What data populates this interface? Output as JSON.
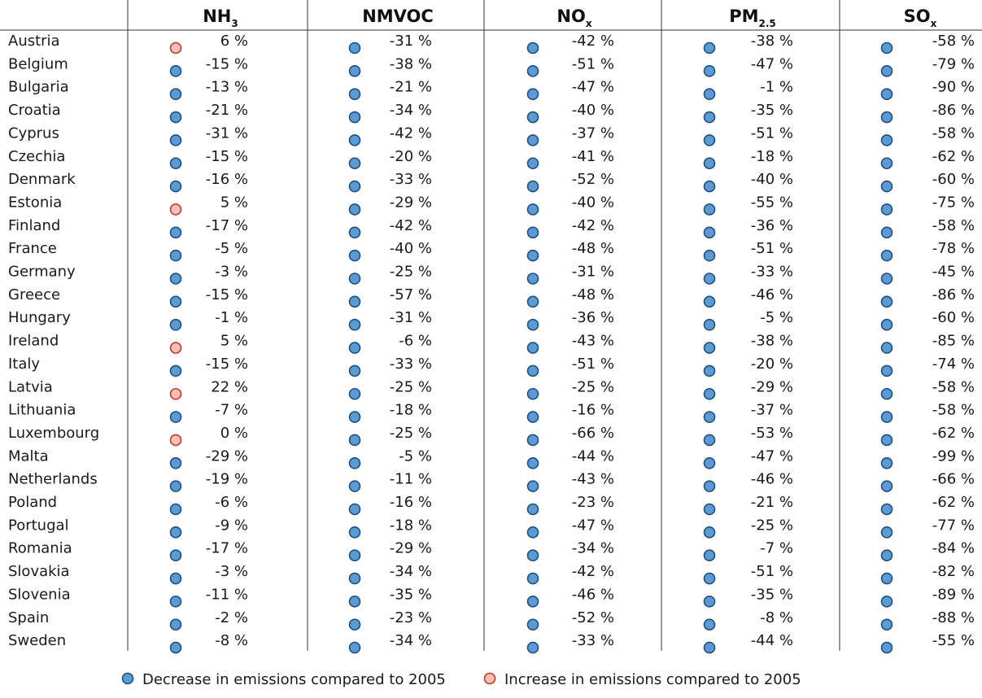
{
  "colors": {
    "decrease": "#5b9bd5",
    "increase": "#f8c0b0",
    "decrease_stroke": "#1f4e79",
    "increase_stroke": "#c0392b"
  },
  "legend": {
    "decrease": "Decrease in emissions compared to 2005",
    "increase": "Increase in emissions compared to 2005"
  },
  "chart_data": {
    "type": "table",
    "unit": "%",
    "columns": [
      {
        "main": "NH",
        "sub": "3"
      },
      {
        "main": "NMVOC",
        "sub": ""
      },
      {
        "main": "NO",
        "sub": "x"
      },
      {
        "main": "PM",
        "sub": "2.5"
      },
      {
        "main": "SO",
        "sub": "x"
      }
    ],
    "rows": [
      {
        "country": "Austria",
        "values": [
          6,
          -31,
          -42,
          -38,
          -58
        ]
      },
      {
        "country": "Belgium",
        "values": [
          -15,
          -38,
          -51,
          -47,
          -79
        ]
      },
      {
        "country": "Bulgaria",
        "values": [
          -13,
          -21,
          -47,
          -1,
          -90
        ]
      },
      {
        "country": "Croatia",
        "values": [
          -21,
          -34,
          -40,
          -35,
          -86
        ]
      },
      {
        "country": "Cyprus",
        "values": [
          -31,
          -42,
          -37,
          -51,
          -58
        ]
      },
      {
        "country": "Czechia",
        "values": [
          -15,
          -20,
          -41,
          -18,
          -62
        ]
      },
      {
        "country": "Denmark",
        "values": [
          -16,
          -33,
          -52,
          -40,
          -60
        ]
      },
      {
        "country": "Estonia",
        "values": [
          5,
          -29,
          -40,
          -55,
          -75
        ]
      },
      {
        "country": "Finland",
        "values": [
          -17,
          -42,
          -42,
          -36,
          -58
        ]
      },
      {
        "country": "France",
        "values": [
          -5,
          -40,
          -48,
          -51,
          -78
        ]
      },
      {
        "country": "Germany",
        "values": [
          -3,
          -25,
          -31,
          -33,
          -45
        ]
      },
      {
        "country": "Greece",
        "values": [
          -15,
          -57,
          -48,
          -46,
          -86
        ]
      },
      {
        "country": "Hungary",
        "values": [
          -1,
          -31,
          -36,
          -5,
          -60
        ]
      },
      {
        "country": "Ireland",
        "values": [
          5,
          -6,
          -43,
          -38,
          -85
        ]
      },
      {
        "country": "Italy",
        "values": [
          -15,
          -33,
          -51,
          -20,
          -74
        ]
      },
      {
        "country": "Latvia",
        "values": [
          22,
          -25,
          -25,
          -29,
          -58
        ]
      },
      {
        "country": "Lithuania",
        "values": [
          -7,
          -18,
          -16,
          -37,
          -58
        ]
      },
      {
        "country": "Luxembourg",
        "values": [
          0,
          -25,
          -66,
          -53,
          -62
        ]
      },
      {
        "country": "Malta",
        "values": [
          -29,
          -5,
          -44,
          -47,
          -99
        ]
      },
      {
        "country": "Netherlands",
        "values": [
          -19,
          -11,
          -43,
          -46,
          -66
        ]
      },
      {
        "country": "Poland",
        "values": [
          -6,
          -16,
          -23,
          -21,
          -62
        ]
      },
      {
        "country": "Portugal",
        "values": [
          -9,
          -18,
          -47,
          -25,
          -77
        ]
      },
      {
        "country": "Romania",
        "values": [
          -17,
          -29,
          -34,
          -7,
          -84
        ]
      },
      {
        "country": "Slovakia",
        "values": [
          -3,
          -34,
          -42,
          -51,
          -82
        ]
      },
      {
        "country": "Slovenia",
        "values": [
          -11,
          -35,
          -46,
          -35,
          -89
        ]
      },
      {
        "country": "Spain",
        "values": [
          -2,
          -23,
          -52,
          -8,
          -88
        ]
      },
      {
        "country": "Sweden",
        "values": [
          -8,
          -34,
          -33,
          -44,
          -55
        ]
      }
    ],
    "increase_markers": [
      {
        "country": "Austria",
        "column": 0
      },
      {
        "country": "Estonia",
        "column": 0
      },
      {
        "country": "Ireland",
        "column": 0
      },
      {
        "country": "Latvia",
        "column": 0
      },
      {
        "country": "Luxembourg",
        "column": 0
      }
    ]
  }
}
